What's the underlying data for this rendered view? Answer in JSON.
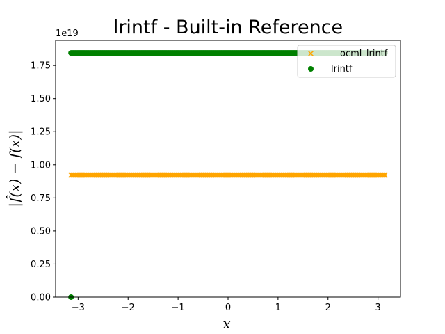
{
  "chart_data": {
    "type": "scatter",
    "title": "lrintf - Built-in Reference",
    "xlabel": "x",
    "ylabel": "|f̂(x) − f(x)|",
    "y_offset_text": "1e19",
    "xlim": [
      -3.45,
      3.45
    ],
    "ylim": [
      0,
      19400000000000000000
    ],
    "xticks": [
      -3,
      -2,
      -1,
      0,
      1,
      2,
      3
    ],
    "xtick_labels": [
      "−3",
      "−2",
      "−1",
      "0",
      "1",
      "2",
      "3"
    ],
    "yticks": [
      0,
      2500000000000000000,
      5000000000000000000,
      7500000000000000000,
      10000000000000000000,
      12500000000000000000,
      15000000000000000000,
      17500000000000000000
    ],
    "ytick_labels": [
      "0.00",
      "0.25",
      "0.50",
      "0.75",
      "1.00",
      "1.25",
      "1.50",
      "1.75"
    ],
    "grid": false,
    "legend_position": "top-right",
    "series": [
      {
        "name": "__ocml_lrintf",
        "marker": "x",
        "color": "#FFA500",
        "x_range": [
          -3.14159,
          3.14159
        ],
        "y_constant": 9223372036854775808
      },
      {
        "name": "lrintf",
        "marker": "o",
        "color": "#008000",
        "x_range": [
          -3.14159,
          3.14159
        ],
        "y_constant": 18446744073709551616,
        "extra_points": [
          {
            "x": -3.14159,
            "y": 0
          }
        ]
      }
    ]
  }
}
